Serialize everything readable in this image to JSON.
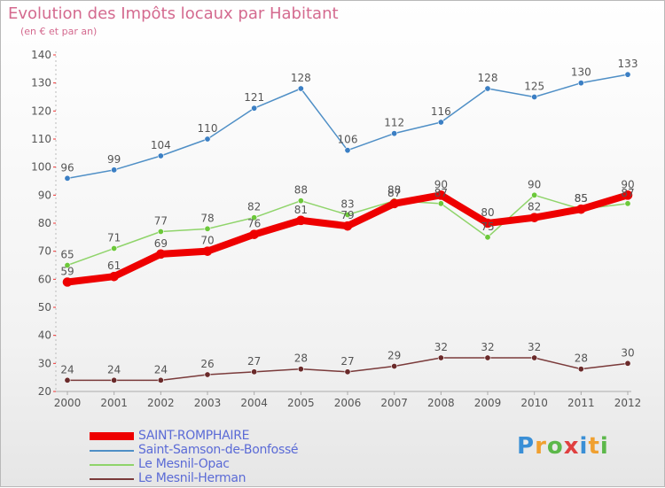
{
  "page": {
    "title": "Evolution des Impôts locaux par Habitant",
    "subtitle": "(en € et par an)"
  },
  "logo": {
    "letters": [
      "P",
      "r",
      "o",
      "x",
      "i",
      "t",
      "i"
    ],
    "colors": [
      "#3a8fd6",
      "#f0a030",
      "#5cb84a",
      "#e04040",
      "#3a8fd6",
      "#f0a030",
      "#5cb84a"
    ]
  },
  "chart_data": {
    "type": "line",
    "x": [
      "2000",
      "2001",
      "2002",
      "2003",
      "2004",
      "2005",
      "2006",
      "2007",
      "2008",
      "2009",
      "2010",
      "2011",
      "2012"
    ],
    "ylim": [
      20,
      140
    ],
    "yticks": [
      20,
      30,
      40,
      50,
      60,
      70,
      80,
      90,
      100,
      110,
      120,
      130,
      140
    ],
    "grid": false,
    "legend_position": "bottom-left",
    "series": [
      {
        "name": "Saint-Samson-de-Bonfossé",
        "color": "#4f8fc6",
        "marker": "#3b7fc4",
        "width": 1.5,
        "values": [
          96,
          99,
          104,
          110,
          121,
          128,
          106,
          112,
          116,
          128,
          125,
          130,
          133
        ]
      },
      {
        "name": "Le Mesnil-Opac",
        "color": "#8fd46a",
        "marker": "#6cc83a",
        "width": 1.5,
        "values": [
          65,
          71,
          77,
          78,
          82,
          88,
          83,
          88,
          87,
          75,
          90,
          85,
          87
        ]
      },
      {
        "name": "Le Mesnil-Herman",
        "color": "#7a3a3a",
        "marker": "#6a2a2a",
        "width": 1.5,
        "values": [
          24,
          24,
          24,
          26,
          27,
          28,
          27,
          29,
          32,
          32,
          32,
          28,
          30
        ]
      },
      {
        "name": "SAINT-ROMPHAIRE",
        "color": "#ee0000",
        "marker": "#ee0000",
        "width": 8,
        "values": [
          59,
          61,
          69,
          70,
          76,
          81,
          79,
          87,
          90,
          80,
          82,
          85,
          90
        ]
      }
    ]
  },
  "legend": {
    "items": [
      {
        "name": "SAINT-ROMPHAIRE",
        "color": "#ee0000"
      },
      {
        "name": "Saint-Samson-de-Bonfossé",
        "color": "#4f8fc6"
      },
      {
        "name": "Le Mesnil-Opac",
        "color": "#8fd46a"
      },
      {
        "name": "Le Mesnil-Herman",
        "color": "#7a3a3a"
      }
    ]
  }
}
